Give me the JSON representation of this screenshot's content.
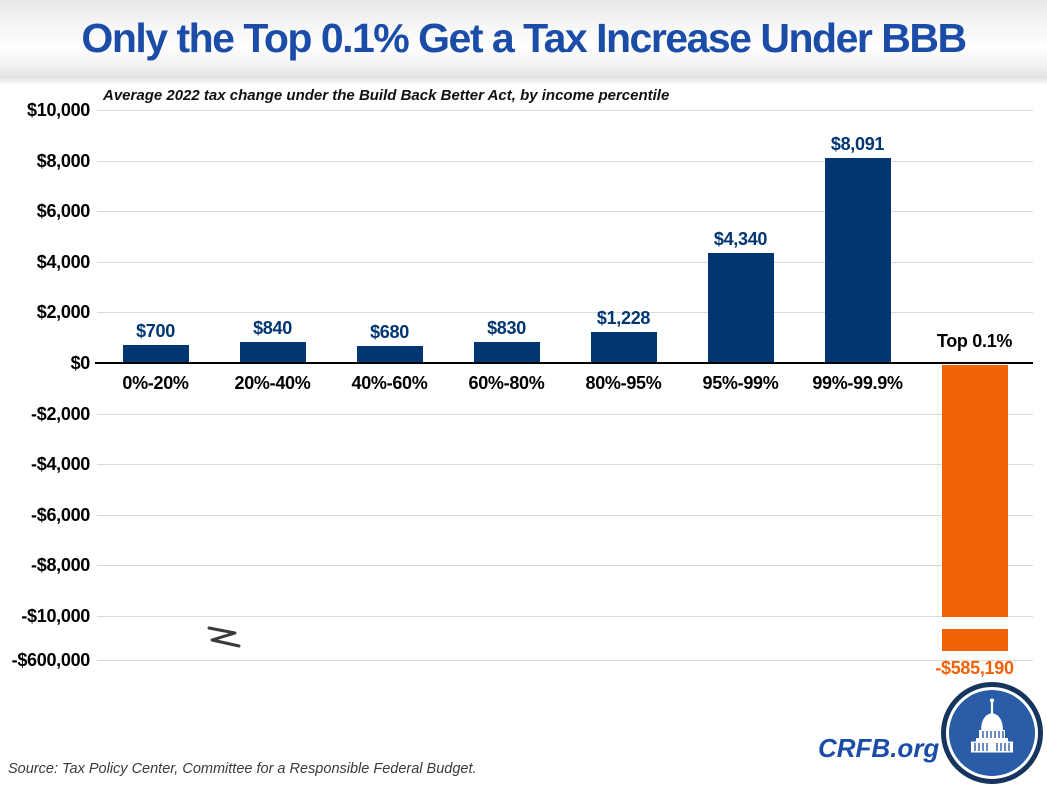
{
  "chart_data": {
    "type": "bar",
    "title": "Only the Top 0.1% Get a Tax Increase Under BBB",
    "subtitle": "Average 2022 tax change under the Build Back Better Act, by income percentile",
    "categories": [
      "0%-20%",
      "20%-40%",
      "40%-60%",
      "60%-80%",
      "80%-95%",
      "95%-99%",
      "99%-99.9%",
      "Top 0.1%"
    ],
    "values": [
      700,
      840,
      680,
      830,
      1228,
      4340,
      8091,
      -585190
    ],
    "bar_labels": [
      "$700",
      "$840",
      "$680",
      "$830",
      "$1,228",
      "$4,340",
      "$8,091",
      "-$585,190"
    ],
    "y_axis": {
      "tick_labels": [
        "$10,000",
        "$8,000",
        "$6,000",
        "$4,000",
        "$2,000",
        "$0",
        "-$2,000",
        "-$4,000",
        "-$6,000",
        "-$8,000",
        "-$10,000",
        "-$600,000"
      ],
      "tick_values": [
        10000,
        8000,
        6000,
        4000,
        2000,
        0,
        -2000,
        -4000,
        -6000,
        -8000,
        -10000,
        -600000
      ]
    },
    "axis_break": {
      "present": true,
      "between_ticks": [
        "-$10,000",
        "-$600,000"
      ]
    },
    "grid": true,
    "legend": "none",
    "xlabel": "",
    "ylabel": "",
    "colors": {
      "positive_bar": "#003671",
      "negative_bar": "#F16206",
      "gridline": "#D9D9D9",
      "axis_line": "#000000",
      "title_blue": "#1B4DA8",
      "category_label": "#000000"
    }
  },
  "footer": {
    "source": "Source: Tax Policy Center, Committee for a Responsible Federal Budget.",
    "brand": "CRFB.org",
    "logo": "capitol-dome-logo"
  }
}
